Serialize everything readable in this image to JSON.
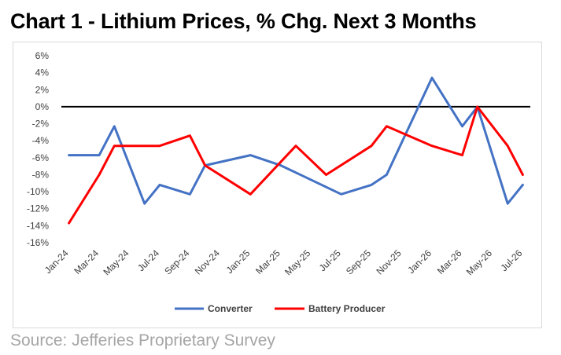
{
  "title": "Chart 1 - Lithium Prices, % Chg. Next 3 Months",
  "source": "Source: Jefferies Proprietary Survey",
  "chart_data": {
    "type": "line",
    "title": "Chart 1 - Lithium Prices, % Chg. Next 3 Months",
    "xlabel": "",
    "ylabel": "",
    "ylim": [
      -16,
      6
    ],
    "yticks": [
      6,
      4,
      2,
      0,
      -2,
      -4,
      -6,
      -8,
      -10,
      -12,
      -14,
      -16
    ],
    "ytick_labels": [
      "6%",
      "4%",
      "2%",
      "0%",
      "-2%",
      "-4%",
      "-6%",
      "-8%",
      "-10%",
      "-12%",
      "-14%",
      "-16%"
    ],
    "x": [
      "Jan-24",
      "Feb-24",
      "Mar-24",
      "Apr-24",
      "May-24",
      "Jun-24",
      "Jul-24",
      "Aug-24",
      "Sep-24",
      "Oct-24",
      "Nov-24",
      "Dec-24",
      "Jan-25",
      "Feb-25",
      "Mar-25",
      "Apr-25",
      "May-25",
      "Jun-25",
      "Jul-25",
      "Aug-25",
      "Sep-25",
      "Oct-25",
      "Nov-25",
      "Dec-25",
      "Jan-26",
      "Feb-26",
      "Mar-26",
      "Apr-26",
      "May-26",
      "Jun-26",
      "Jul-26"
    ],
    "xtick_labels": [
      "Jan-24",
      "Mar-24",
      "May-24",
      "Jul-24",
      "Sep-24",
      "Nov-24",
      "Jan-25",
      "Mar-25",
      "May-25",
      "Jul-25",
      "Sep-25",
      "Nov-25",
      "Jan-26",
      "Mar-26",
      "May-26",
      "Jul-26"
    ],
    "grid": false,
    "legend_position": "bottom",
    "series": [
      {
        "name": "Converter",
        "color": "#4472c4",
        "points": [
          [
            "Jan-24",
            -5.7
          ],
          [
            "Mar-24",
            -5.7
          ],
          [
            "Apr-24",
            -2.3
          ],
          [
            "Jun-24",
            -11.4
          ],
          [
            "Jul-24",
            -9.2
          ],
          [
            "Sep-24",
            -10.3
          ],
          [
            "Oct-24",
            -6.9
          ],
          [
            "Jan-25",
            -5.7
          ],
          [
            "Mar-25",
            -6.9
          ],
          [
            "Jul-25",
            -10.3
          ],
          [
            "Sep-25",
            -9.2
          ],
          [
            "Oct-25",
            -8.0
          ],
          [
            "Jan-26",
            3.4
          ],
          [
            "Mar-26",
            -2.3
          ],
          [
            "Apr-26",
            0.0
          ],
          [
            "Jun-26",
            -11.4
          ],
          [
            "Jul-26",
            -9.2
          ]
        ]
      },
      {
        "name": "Battery Producer",
        "color": "#ff0000",
        "points": [
          [
            "Jan-24",
            -13.7
          ],
          [
            "Mar-24",
            -8.0
          ],
          [
            "Apr-24",
            -4.6
          ],
          [
            "Jul-24",
            -4.6
          ],
          [
            "Sep-24",
            -3.4
          ],
          [
            "Oct-24",
            -6.9
          ],
          [
            "Jan-25",
            -10.3
          ],
          [
            "Apr-25",
            -4.6
          ],
          [
            "Jun-25",
            -8.0
          ],
          [
            "Sep-25",
            -4.6
          ],
          [
            "Oct-25",
            -2.3
          ],
          [
            "Jan-26",
            -4.6
          ],
          [
            "Mar-26",
            -5.7
          ],
          [
            "Apr-26",
            0.0
          ],
          [
            "Jun-26",
            -4.6
          ],
          [
            "Jul-26",
            -8.0
          ]
        ]
      }
    ]
  }
}
